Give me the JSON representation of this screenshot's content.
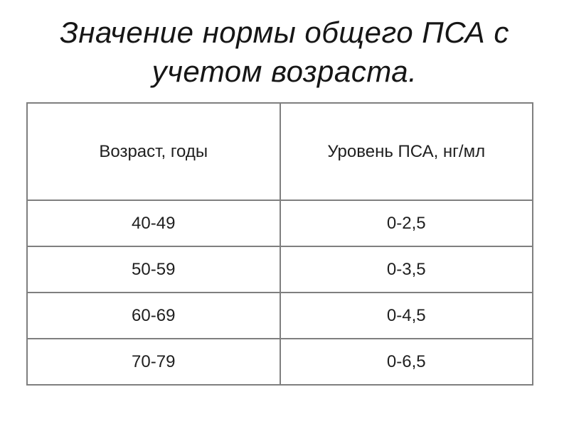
{
  "slide": {
    "title_lines": [
      "Значение нормы общего ПСА с",
      "учетом возраста."
    ]
  },
  "table": {
    "headers": [
      "Возраст, годы",
      "Уровень ПСА, нг/мл"
    ],
    "rows": [
      [
        "40-49",
        "0-2,5"
      ],
      [
        "50-59",
        "0-3,5"
      ],
      [
        "60-69",
        "0-4,5"
      ],
      [
        "70-79",
        "0-6,5"
      ]
    ]
  },
  "colors": {
    "background": "#ffffff",
    "title_text": "#161616",
    "cell_text": "#1f1f1f",
    "table_border": "#7f7f7f"
  }
}
